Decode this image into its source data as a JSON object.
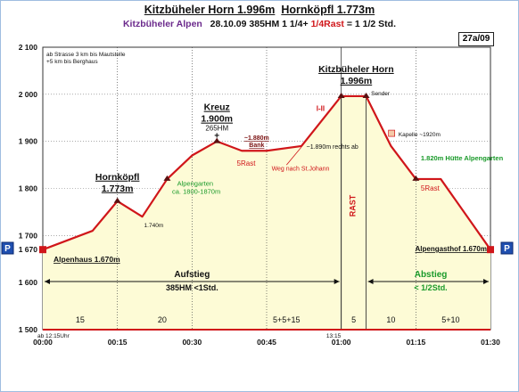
{
  "header": {
    "title_a": "Kitzbüheler Horn 1.996m",
    "title_b": "Hornköpfl 1.773m",
    "subtitle_region": "Kitzbüheler Alpen",
    "subtitle_date_hm": "28.10.09 385HM 1 1/4+",
    "subtitle_rast": "1/4Rast",
    "subtitle_total": "= 1 1/2 Std.",
    "ref": "27a/09"
  },
  "chart_data": {
    "type": "area",
    "x_unit": "time h:mm",
    "y_unit": "m",
    "x_ticks": [
      "00:00",
      "00:15",
      "00:30",
      "00:45",
      "01:00",
      "01:15",
      "01:30"
    ],
    "x_tick_values": [
      0,
      15,
      30,
      45,
      60,
      75,
      90
    ],
    "y_ticks": [
      "1 500",
      "1 600",
      "1 670",
      "1 700",
      "1 800",
      "1 900",
      "2 000",
      "2 100"
    ],
    "y_tick_values": [
      1500,
      1600,
      1670,
      1700,
      1800,
      1900,
      2000,
      2100
    ],
    "xlim": [
      0,
      90
    ],
    "ylim": [
      1500,
      2100
    ],
    "profile": [
      {
        "t": 0,
        "elev": 1670
      },
      {
        "t": 10,
        "elev": 1710
      },
      {
        "t": 15,
        "elev": 1773
      },
      {
        "t": 20,
        "elev": 1740
      },
      {
        "t": 25,
        "elev": 1820
      },
      {
        "t": 30,
        "elev": 1870
      },
      {
        "t": 35,
        "elev": 1900
      },
      {
        "t": 40,
        "elev": 1880
      },
      {
        "t": 45,
        "elev": 1880
      },
      {
        "t": 52,
        "elev": 1890
      },
      {
        "t": 60,
        "elev": 1996
      },
      {
        "t": 65,
        "elev": 1996
      },
      {
        "t": 70,
        "elev": 1890
      },
      {
        "t": 75,
        "elev": 1820
      },
      {
        "t": 80,
        "elev": 1820
      },
      {
        "t": 90,
        "elev": 1670
      }
    ],
    "points": [
      {
        "t": 0,
        "elev": 1670,
        "kind": "end"
      },
      {
        "t": 15,
        "elev": 1773,
        "kind": "dot"
      },
      {
        "t": 25,
        "elev": 1820,
        "kind": "dot"
      },
      {
        "t": 35,
        "elev": 1900,
        "kind": "dot"
      },
      {
        "t": 60,
        "elev": 1996,
        "kind": "dot"
      },
      {
        "t": 65,
        "elev": 1996,
        "kind": "dot"
      },
      {
        "t": 75,
        "elev": 1820,
        "kind": "dot"
      },
      {
        "t": 90,
        "elev": 1670,
        "kind": "end"
      }
    ],
    "dotted_x": [
      15,
      30,
      45,
      60,
      75
    ],
    "section_separators": [
      60,
      65
    ],
    "labels": {
      "hornkoepfl_name": "Hornköpfl",
      "hornkoepfl_elev": "1.773m",
      "kreuz_name": "Kreuz",
      "kreuz_elev": "1.900m",
      "kreuz_hm": "265HM",
      "horn_name": "Kitzbüheler Horn",
      "horn_elev": "1.996m",
      "alpenhaus": "Alpenhaus 1.670m",
      "alpengasthof": "Alpengasthof 1.670m",
      "bank_elev": "~1.880m",
      "bank": "Bank",
      "rechts_ab": "~1.890m rechts ab",
      "weg": "Weg nach St.Johann",
      "alpengarten_1": "Alpengarten",
      "alpengarten_2": "ca. 1800-1870m",
      "huette": "1.820m Hütte Alpengarten",
      "kapelle": "Kapelle ~1920m",
      "sender": "Sender",
      "m1740": "1.740m",
      "i_ii": "I-II",
      "rast_vertical": "RAST",
      "rast_5_left": "5Rast",
      "rast_5_right": "5Rast",
      "strasse_1": "ab Strasse 3 km bis Mautstelle",
      "strasse_2": "+5 km bis Berghaus",
      "start_time": "ab 12:15Uhr",
      "time_1315": "13:15",
      "aufstieg": "Aufstieg",
      "aufstieg_2": "385HM <1Std.",
      "abstieg": "Abstieg",
      "abstieg_2": "< 1/2Std.",
      "p_left": "P",
      "p_right": "P"
    },
    "segment_durations": [
      {
        "t": 7.5,
        "text": "15"
      },
      {
        "t": 24,
        "text": "20"
      },
      {
        "t": 49,
        "text": "5+5+15"
      },
      {
        "t": 62.5,
        "text": "5"
      },
      {
        "t": 70,
        "text": "10"
      },
      {
        "t": 82,
        "text": "5+10"
      }
    ],
    "colors": {
      "line": "#d0161a",
      "fill": "#fdfbd6",
      "green": "#1a9a2a",
      "blue": "#1f3d8f",
      "purple": "#6b2a8c"
    }
  }
}
